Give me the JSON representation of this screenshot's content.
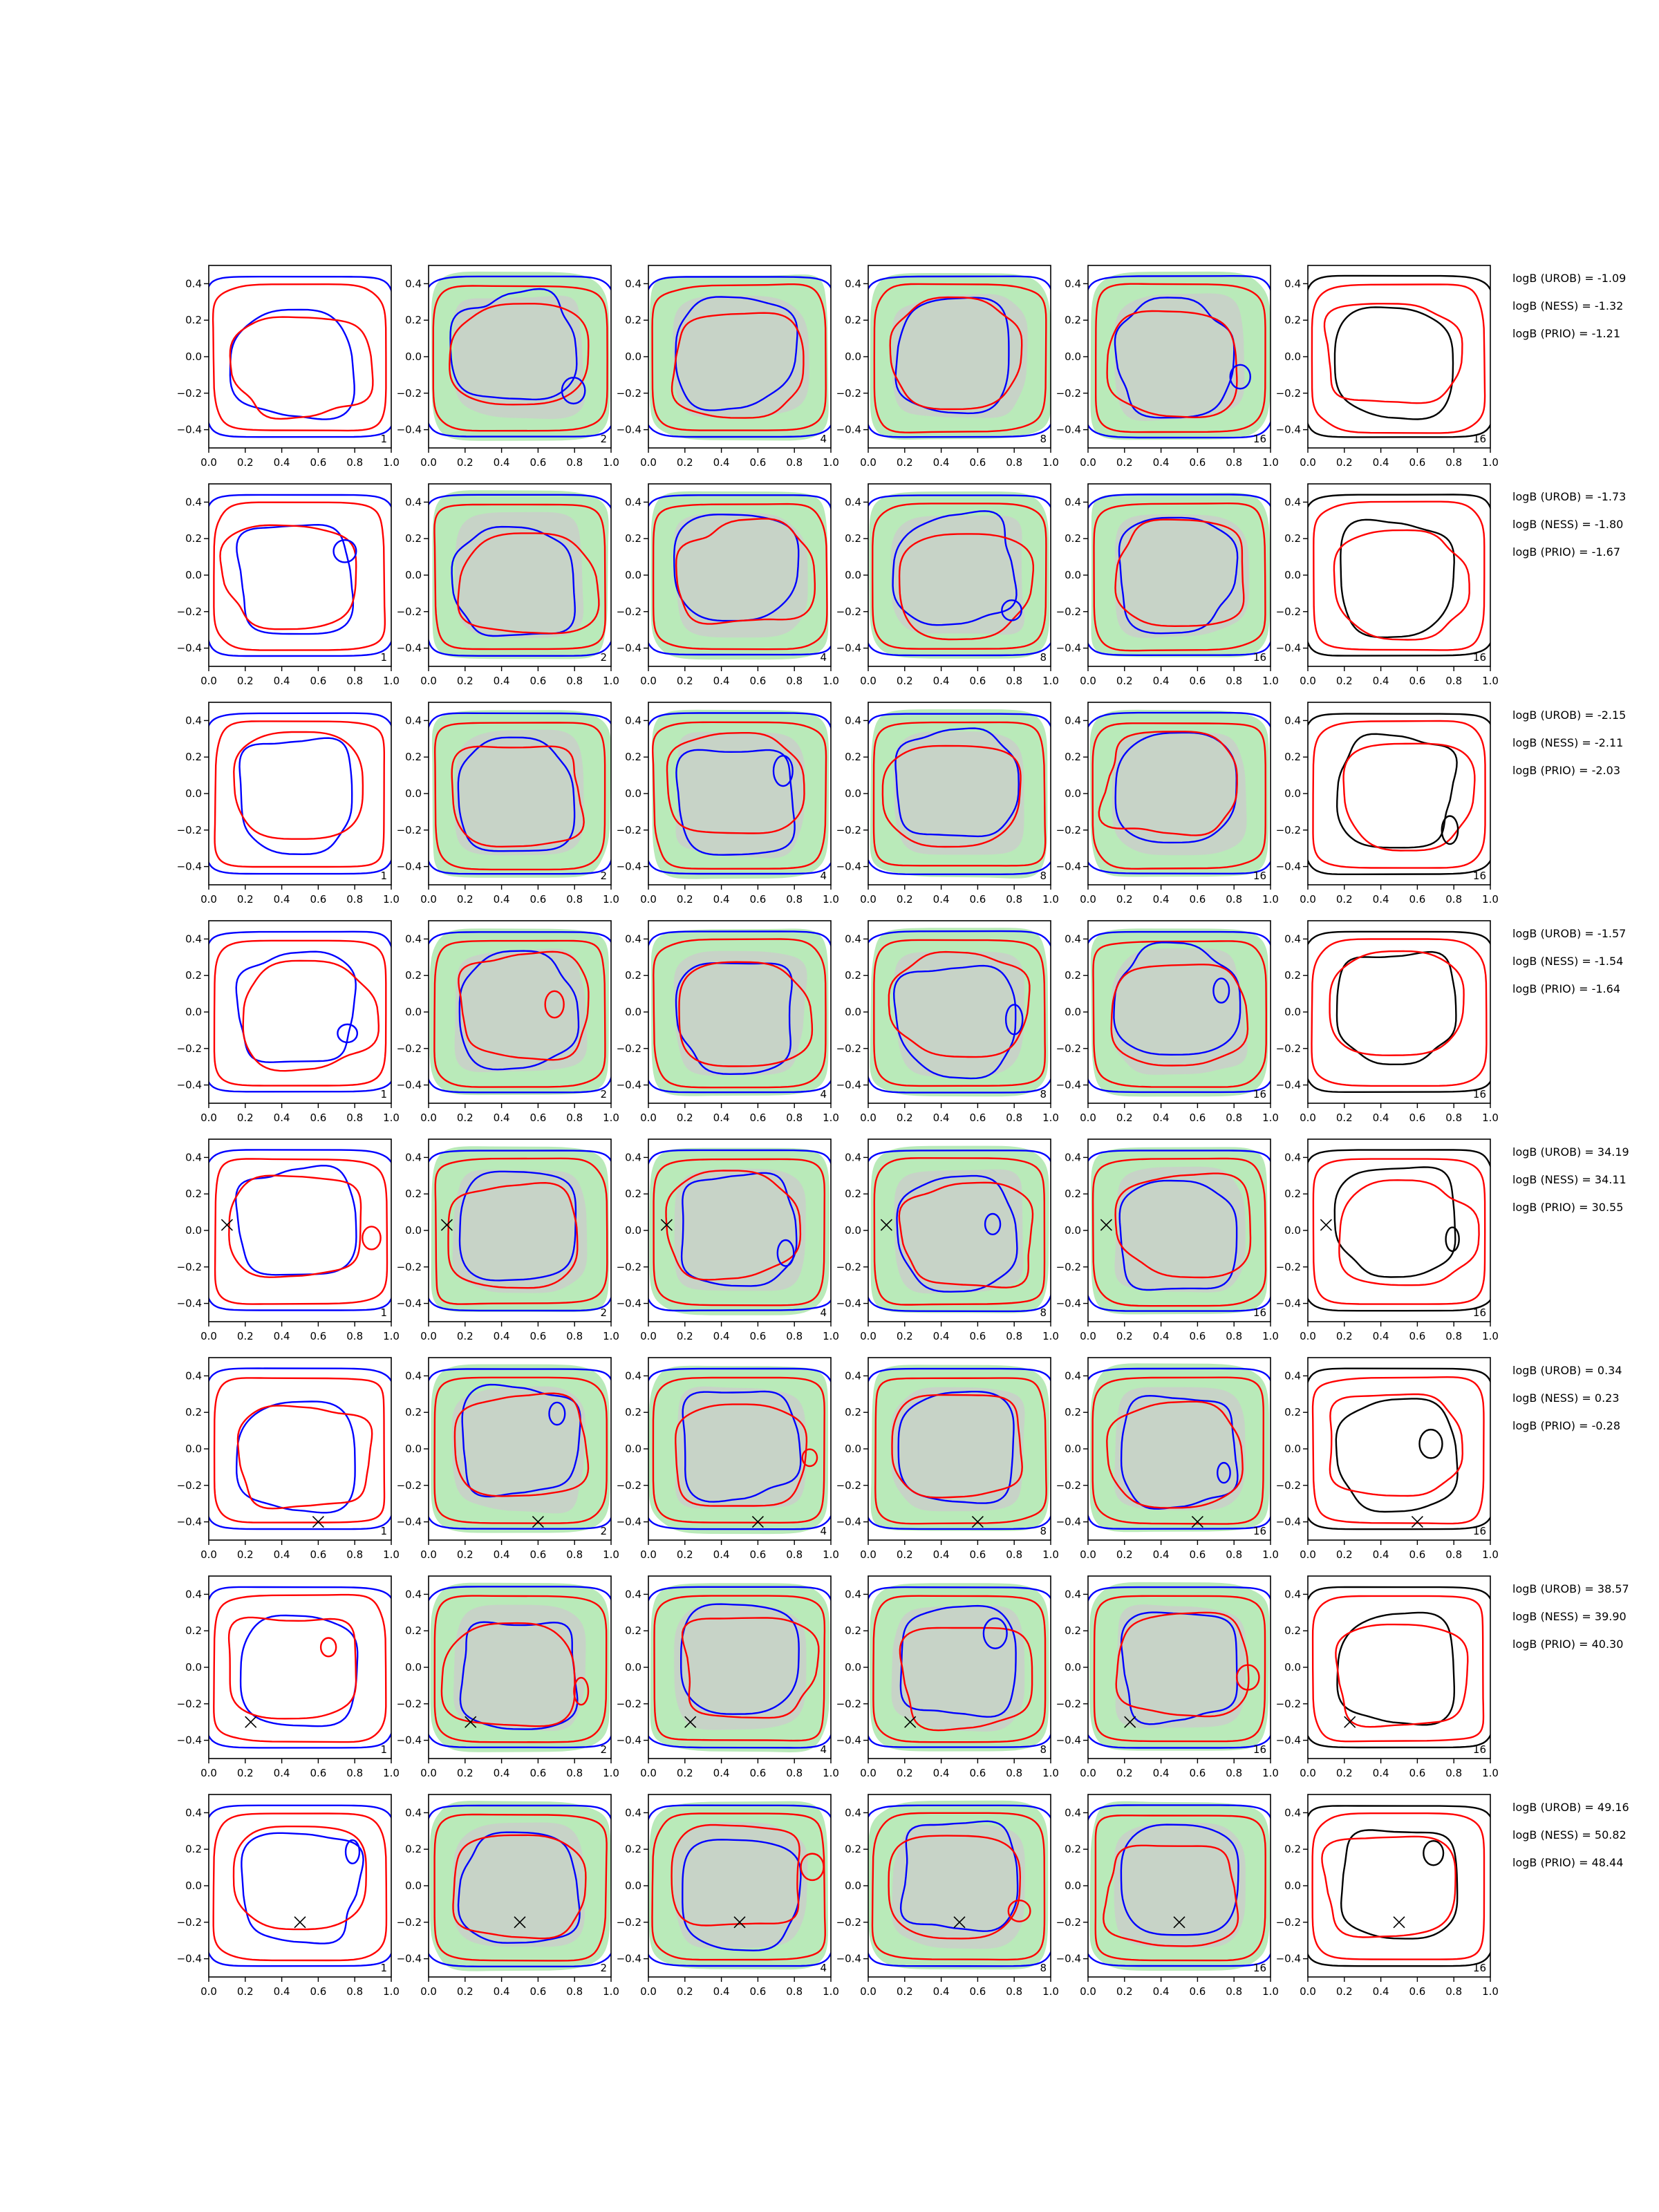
{
  "chart_data": {
    "type": "contour-grid",
    "grid": "on-frames-only",
    "xlim": [
      0.0,
      1.0
    ],
    "ylim": [
      -0.5,
      0.5
    ],
    "x_ticks": [
      "0.0",
      "0.2",
      "0.4",
      "0.6",
      "0.8",
      "1.0"
    ],
    "y_ticks": [
      "0.4",
      "0.2",
      "0.0",
      "−0.2",
      "−0.4"
    ],
    "column_tags": [
      "1",
      "2",
      "4",
      "8",
      "16",
      "16"
    ],
    "colors": {
      "contour_a": "#0000ff",
      "contour_b": "#ff0000",
      "contour_final": "#000000",
      "region_outer": "#b9eab9",
      "region_inner": "#c9cfc9",
      "marker": "#000000"
    },
    "rows": [
      {
        "markers": [],
        "bayes_factors": [
          "logB (UROB) = -1.09",
          "logB (NESS) = -1.32",
          "logB (PRIO) = -1.21"
        ]
      },
      {
        "markers": [],
        "bayes_factors": [
          "logB (UROB) = -1.73",
          "logB (NESS) = -1.80",
          "logB (PRIO) = -1.67"
        ]
      },
      {
        "markers": [],
        "bayes_factors": [
          "logB (UROB) = -2.15",
          "logB (NESS) = -2.11",
          "logB (PRIO) = -2.03"
        ]
      },
      {
        "markers": [],
        "bayes_factors": [
          "logB (UROB) = -1.57",
          "logB (NESS) = -1.54",
          "logB (PRIO) = -1.64"
        ]
      },
      {
        "markers": [
          [
            0.1,
            0.03
          ]
        ],
        "bayes_factors": [
          "logB (UROB) = 34.19",
          "logB (NESS) = 34.11",
          "logB (PRIO) = 30.55"
        ]
      },
      {
        "markers": [
          [
            0.6,
            -0.4
          ]
        ],
        "bayes_factors": [
          "logB (UROB) = 0.34",
          "logB (NESS) = 0.23",
          "logB (PRIO) = -0.28"
        ]
      },
      {
        "markers": [
          [
            0.23,
            -0.3
          ]
        ],
        "bayes_factors": [
          "logB (UROB) = 38.57",
          "logB (NESS) = 39.90",
          "logB (PRIO) = 40.30"
        ]
      },
      {
        "markers": [
          [
            0.5,
            -0.2
          ]
        ],
        "bayes_factors": [
          "logB (UROB) = 49.16",
          "logB (NESS) = 50.82",
          "logB (PRIO) = 48.44"
        ]
      }
    ]
  }
}
